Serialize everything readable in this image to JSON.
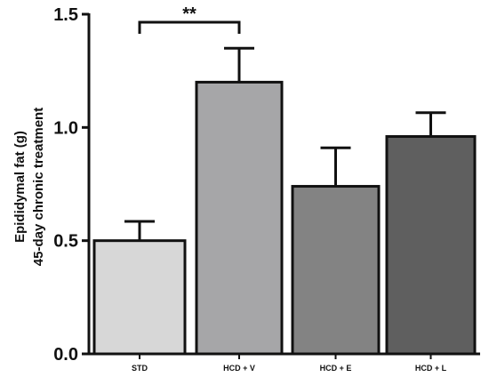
{
  "chart_data": {
    "type": "bar",
    "categories": [
      "STD",
      "HCD + V",
      "HCD + E",
      "HCD + L"
    ],
    "values": [
      0.5,
      1.2,
      0.74,
      0.96
    ],
    "error_upper": [
      0.085,
      0.15,
      0.17,
      0.105
    ],
    "colors": [
      "#d7d7d7",
      "#a6a6a8",
      "#838383",
      "#5f5f5f"
    ],
    "ylabel_lines": [
      "Epididymal fat (g)",
      "45-day chronic treatment"
    ],
    "yticks": [
      "0.0",
      "0.5",
      "1.0",
      "1.5"
    ],
    "ytick_values": [
      0,
      0.5,
      1.0,
      1.5
    ],
    "ylim": [
      0,
      1.5
    ],
    "grid": false,
    "significance": {
      "from": "STD",
      "to": "HCD + V",
      "label": "**"
    }
  }
}
